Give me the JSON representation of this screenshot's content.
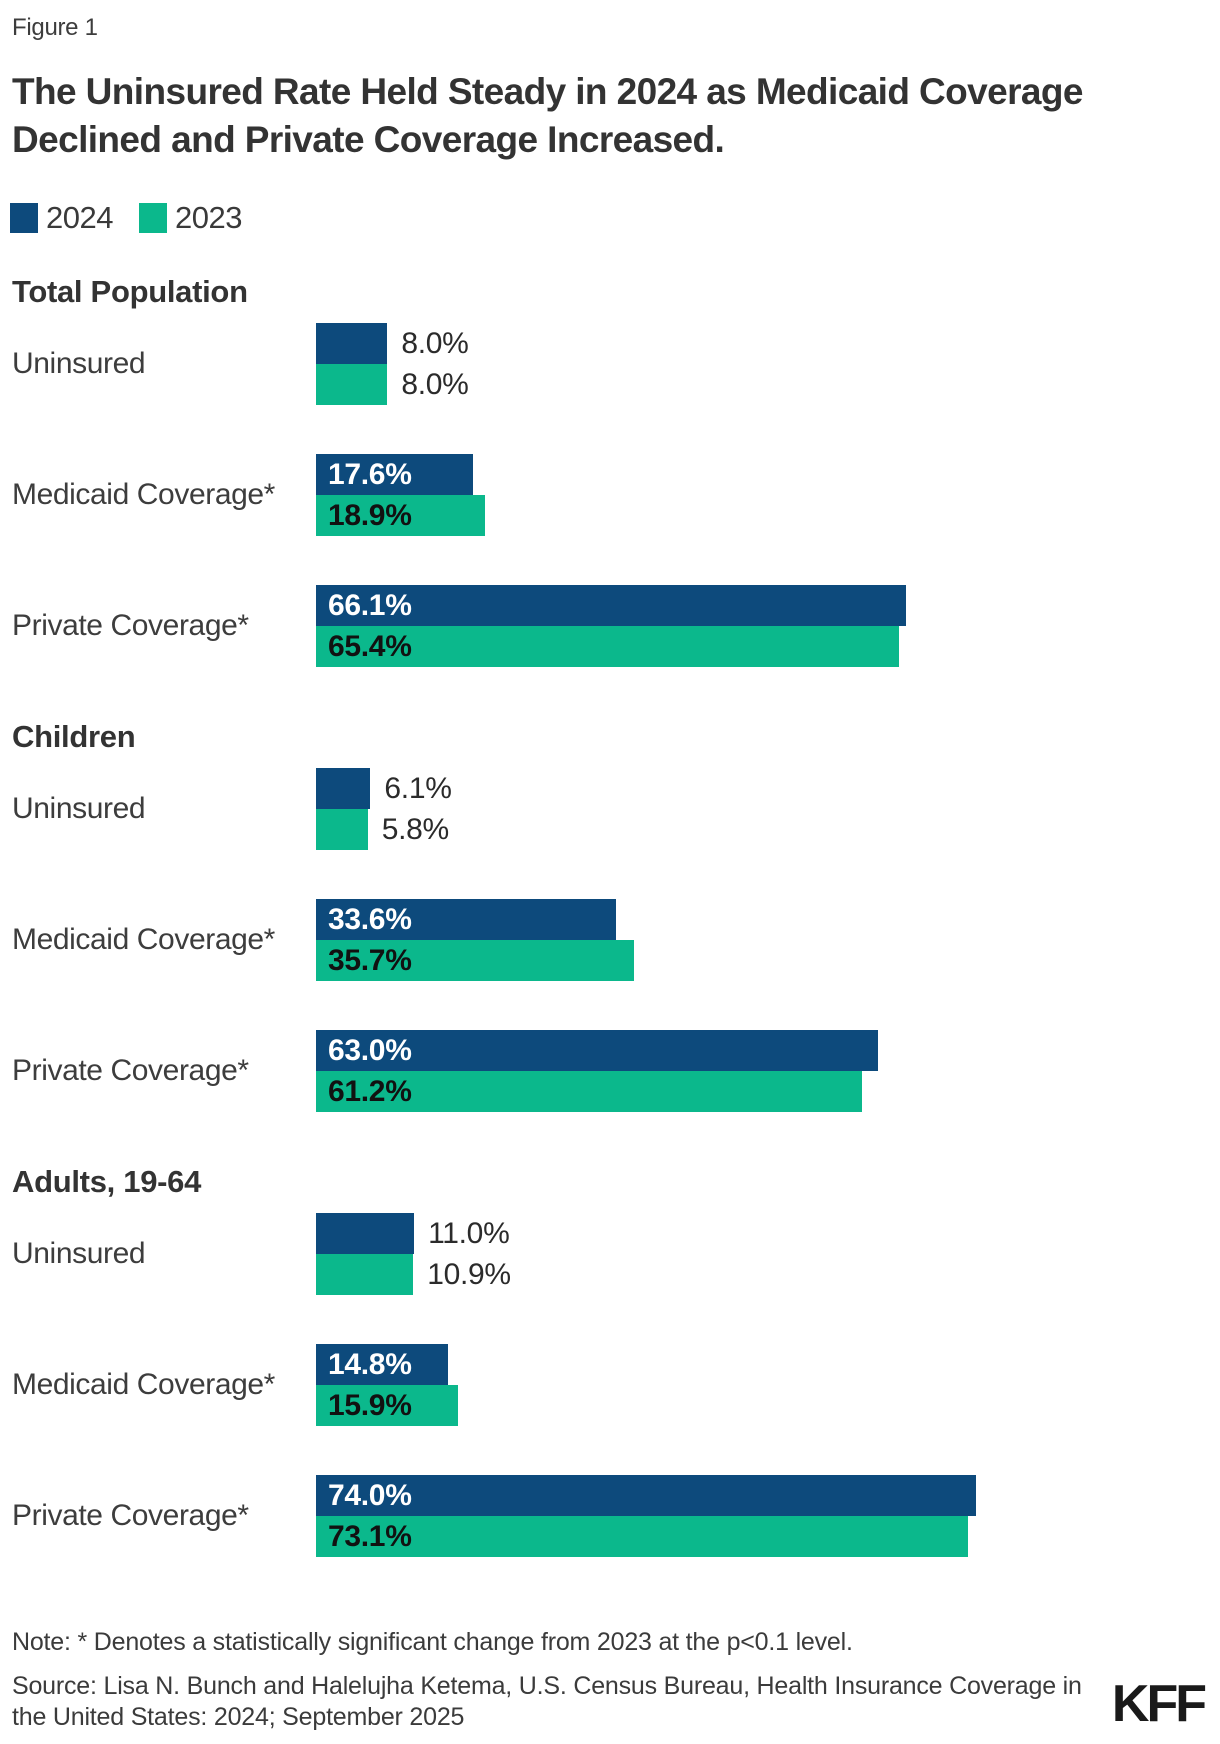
{
  "figure_label": "Figure 1",
  "title": {
    "line1": "The Uninsured Rate Held Steady in 2024 as Medicaid Coverage",
    "line2": "Declined and Private Coverage Increased."
  },
  "legend": {
    "items": [
      {
        "label": "2024",
        "color": "#0d4a7c"
      },
      {
        "label": "2023",
        "color": "#0bb88c"
      }
    ]
  },
  "colors": {
    "bar_2024": "#0d4a7c",
    "bar_2023": "#0bb88c",
    "inside_text_2024": "#ffffff",
    "inside_text_2023": "#111111",
    "outside_text": "#2b2b2b"
  },
  "chart_data": {
    "type": "bar",
    "orientation": "horizontal",
    "unit": "%",
    "xlim": [
      0,
      100
    ],
    "grid": false,
    "legend_position": "top-left",
    "value_label_format": "one-decimal-percent",
    "inside_label_threshold": 14,
    "series_names": [
      "2024",
      "2023"
    ],
    "groups": [
      {
        "name": "Total Population",
        "rows": [
          {
            "label": "Uninsured",
            "v2024": 8.0,
            "v2023": 8.0
          },
          {
            "label": "Medicaid Coverage*",
            "v2024": 17.6,
            "v2023": 18.9
          },
          {
            "label": "Private Coverage*",
            "v2024": 66.1,
            "v2023": 65.4
          }
        ]
      },
      {
        "name": "Children",
        "rows": [
          {
            "label": "Uninsured",
            "v2024": 6.1,
            "v2023": 5.8
          },
          {
            "label": "Medicaid Coverage*",
            "v2024": 33.6,
            "v2023": 35.7
          },
          {
            "label": "Private Coverage*",
            "v2024": 63.0,
            "v2023": 61.2
          }
        ]
      },
      {
        "name": "Adults, 19-64",
        "rows": [
          {
            "label": "Uninsured",
            "v2024": 11.0,
            "v2023": 10.9
          },
          {
            "label": "Medicaid Coverage*",
            "v2024": 14.8,
            "v2023": 15.9
          },
          {
            "label": "Private Coverage*",
            "v2024": 74.0,
            "v2023": 73.1
          }
        ]
      }
    ]
  },
  "note": "Note: * Denotes a statistically significant change from 2023 at the p<0.1 level.",
  "source": {
    "line1": "Source: Lisa N. Bunch and Halelujha Ketema, U.S. Census Bureau, Health Insurance Coverage",
    "line2": "in the United States: 2024; September 2025"
  },
  "logo_text": "KFF"
}
